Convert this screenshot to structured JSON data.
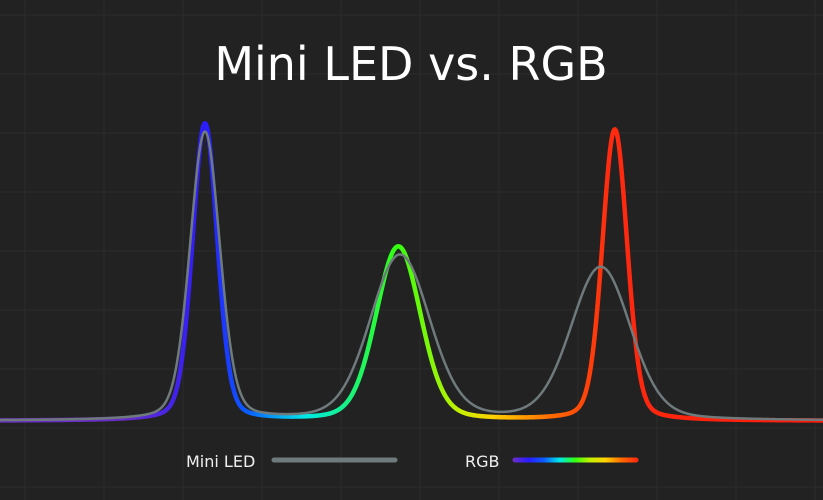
{
  "chart_data": {
    "type": "line",
    "title": "Mini LED vs. RGB",
    "xlabel": "",
    "ylabel": "",
    "xlim": [
      0,
      100
    ],
    "ylim": [
      0,
      1.1
    ],
    "grid": true,
    "legend_placement": "bottom-center",
    "series": [
      {
        "name": "Mini LED",
        "color": "#6f7a7c",
        "peaks": [
          {
            "center": 24.9,
            "height": 0.96,
            "width": 1.8
          },
          {
            "center": 48.6,
            "height": 0.55,
            "width": 3.6
          },
          {
            "center": 73.0,
            "height": 0.51,
            "width": 3.6
          }
        ]
      },
      {
        "name": "RGB",
        "gradient": [
          "#6a2ec8",
          "#2a1cff",
          "#0a5cff",
          "#00e8e8",
          "#30ff10",
          "#c8f000",
          "#ffd000",
          "#ff6a00",
          "#ff2a10",
          "#ff1a0a"
        ],
        "peaks": [
          {
            "center": 24.9,
            "height": 0.99,
            "width": 1.5
          },
          {
            "center": 48.4,
            "height": 0.58,
            "width": 2.7
          },
          {
            "center": 74.7,
            "height": 0.97,
            "width": 1.5
          }
        ]
      }
    ]
  },
  "legend": {
    "mini_led": "Mini LED",
    "rgb": "RGB"
  },
  "colors": {
    "background": "#222222",
    "grid": "#2c2c2c"
  }
}
